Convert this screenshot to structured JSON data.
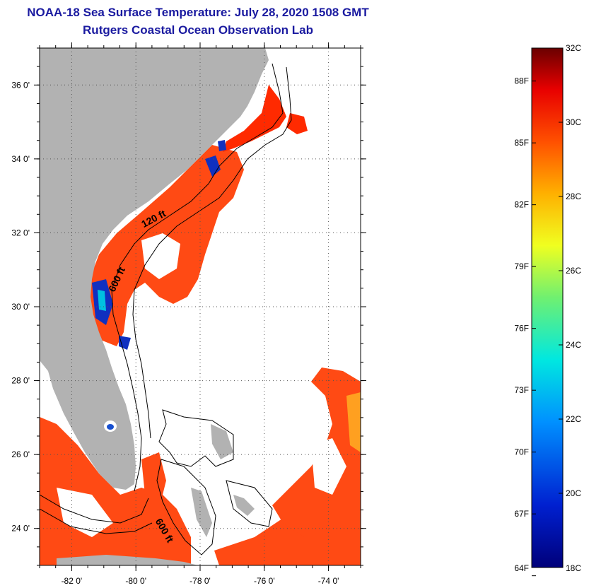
{
  "header": {
    "title": "NOAA-18 Sea Surface Temperature:  July 28, 2020 1508 GMT",
    "subtitle": "Rutgers Coastal Ocean Observation Lab"
  },
  "map": {
    "lon_range": [
      -83,
      -73
    ],
    "lat_range": [
      23,
      37
    ],
    "lat_ticks": [
      {
        "value": 36,
        "label": "36 0'"
      },
      {
        "value": 34,
        "label": "34 0'"
      },
      {
        "value": 32,
        "label": "32 0'"
      },
      {
        "value": 30,
        "label": "30 0'"
      },
      {
        "value": 28,
        "label": "28 0'"
      },
      {
        "value": 26,
        "label": "26 0'"
      },
      {
        "value": 24,
        "label": "24 0'"
      }
    ],
    "lon_ticks": [
      {
        "value": -82,
        "label": "-82 0'"
      },
      {
        "value": -80,
        "label": "-80 0'"
      },
      {
        "value": -78,
        "label": "-78 0'"
      },
      {
        "value": -76,
        "label": "-76 0'"
      },
      {
        "value": -74,
        "label": "-74 0'"
      }
    ],
    "contour_labels": [
      {
        "label": "120 ft",
        "lon": -79.4,
        "lat": 32.3
      },
      {
        "label": "600 ft",
        "lon": -80.5,
        "lat": 30.7
      },
      {
        "label": "600 ft",
        "lon": -79.2,
        "lat": 23.9
      }
    ],
    "colors": {
      "land": "#b2b2b2",
      "ocean_warm": "#ff4a14",
      "ocean_hot": "#ff2a00",
      "ocean_cool": "#ffa020",
      "cloud": "#ffffff",
      "cold_patch": "#1030c0",
      "grid": "#000000"
    }
  },
  "colorbar": {
    "range_c": [
      18,
      32
    ],
    "celsius_ticks": [
      "32C",
      "30C",
      "28C",
      "26C",
      "24C",
      "22C",
      "20C",
      "18C"
    ],
    "fahrenheit_ticks": [
      "88F",
      "85F",
      "82F",
      "79F",
      "76F",
      "73F",
      "70F",
      "67F",
      "64F"
    ],
    "fahrenheit_values": [
      88,
      85,
      82,
      79,
      76,
      73,
      70,
      67,
      64
    ]
  }
}
